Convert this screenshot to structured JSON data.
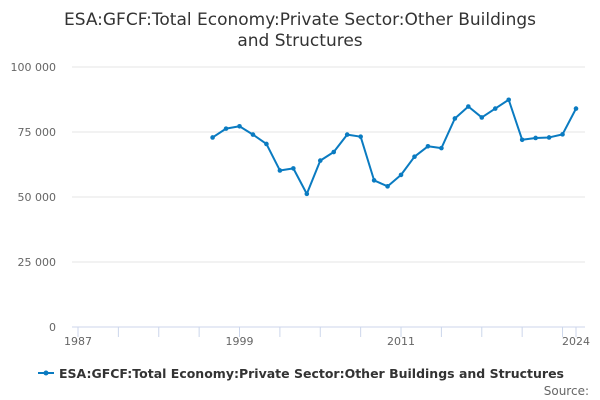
{
  "chart_data": {
    "type": "line",
    "title_line1": "ESA:GFCF:Total Economy:Private Sector:Other Buildings",
    "title_line2": "and Structures",
    "xlabel": "",
    "ylabel": "",
    "xlim": [
      1987,
      2024
    ],
    "ylim": [
      0,
      100000
    ],
    "y_ticks": [
      0,
      25000,
      50000,
      75000,
      100000
    ],
    "y_tick_labels": [
      "0",
      "25 000",
      "50 000",
      "75 000",
      "100 000"
    ],
    "x_tick_labels": [
      "1987",
      "1999",
      "2011",
      "2024"
    ],
    "grid": true,
    "legend_position": "bottom",
    "source_label": "Source:",
    "color": "#0a7bc1",
    "series": [
      {
        "name": "ESA:GFCF:Total Economy:Private Sector:Other Buildings and Structures",
        "x": [
          1997,
          1998,
          1999,
          2000,
          2001,
          2002,
          2003,
          2004,
          2005,
          2006,
          2007,
          2008,
          2009,
          2010,
          2011,
          2012,
          2013,
          2014,
          2015,
          2016,
          2017,
          2018,
          2019,
          2020,
          2021,
          2022,
          2023,
          2024
        ],
        "values": [
          72900,
          76300,
          77200,
          74000,
          70400,
          60200,
          61000,
          51200,
          64000,
          67300,
          74000,
          73200,
          56400,
          54100,
          58500,
          65500,
          69500,
          68800,
          80200,
          84800,
          80600,
          84000,
          87400,
          72000,
          72700,
          72900,
          74100,
          84000
        ]
      }
    ]
  }
}
